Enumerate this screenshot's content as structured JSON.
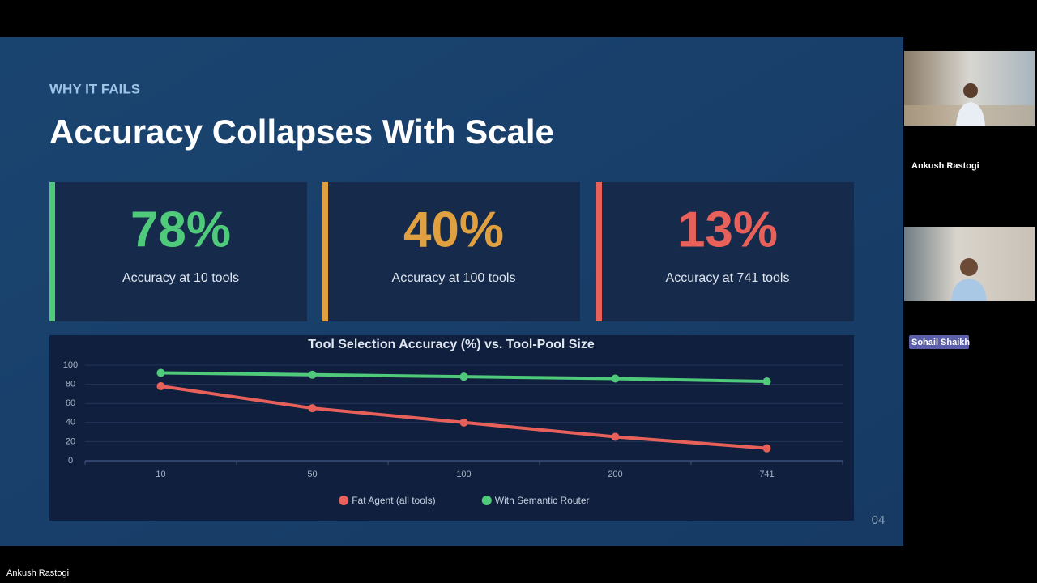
{
  "slide": {
    "eyebrow": "WHY IT FAILS",
    "title": "Accuracy Collapses With Scale",
    "stats": [
      {
        "value": "78%",
        "label": "Accuracy at 10 tools"
      },
      {
        "value": "40%",
        "label": "Accuracy at 100 tools"
      },
      {
        "value": "13%",
        "label": "Accuracy at 741 tools"
      }
    ],
    "page_number": "04"
  },
  "chart_data": {
    "type": "line",
    "title": "Tool Selection Accuracy (%) vs. Tool-Pool Size",
    "categories": [
      "10",
      "50",
      "100",
      "200",
      "741"
    ],
    "series": [
      {
        "name": "Fat Agent (all tools)",
        "color": "#e8605a",
        "values": [
          78,
          55,
          40,
          25,
          13
        ]
      },
      {
        "name": "With Semantic Router",
        "color": "#4fc97a",
        "values": [
          92,
          90,
          88,
          86,
          83
        ]
      }
    ],
    "ylim": [
      0,
      100
    ],
    "yticks": [
      0,
      20,
      40,
      60,
      80,
      100
    ],
    "grid": true,
    "legend": "bottom"
  },
  "participants": [
    {
      "name": "Ankush Rastogi"
    },
    {
      "name": "Sohail Shaikh"
    }
  ],
  "footer": {
    "speaker": "Ankush Rastogi"
  }
}
